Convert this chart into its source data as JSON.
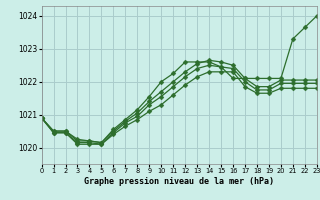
{
  "background_color": "#cceee8",
  "grid_color": "#aacccc",
  "line_color": "#2d6e2d",
  "title": "Graphe pression niveau de la mer (hPa)",
  "xlim": [
    0,
    23
  ],
  "ylim": [
    1019.5,
    1024.3
  ],
  "yticks": [
    1020,
    1021,
    1022,
    1023,
    1024
  ],
  "xticks": [
    0,
    1,
    2,
    3,
    4,
    5,
    6,
    7,
    8,
    9,
    10,
    11,
    12,
    13,
    14,
    15,
    16,
    17,
    18,
    19,
    20,
    21,
    22,
    23
  ],
  "series": [
    {
      "x": [
        0,
        1,
        2,
        3,
        4,
        5,
        6,
        7,
        8,
        9,
        10,
        11,
        12,
        13,
        14,
        15,
        16,
        17,
        18,
        19,
        20,
        21,
        22,
        23
      ],
      "y": [
        1020.9,
        1020.5,
        1020.5,
        1020.25,
        1020.2,
        1020.15,
        1020.55,
        1020.85,
        1021.15,
        1021.55,
        1022.0,
        1022.25,
        1022.6,
        1022.6,
        1022.6,
        1022.45,
        1022.1,
        1022.1,
        1022.1,
        1022.1,
        1022.1,
        1023.3,
        1023.65,
        1024.0
      ]
    },
    {
      "x": [
        0,
        1,
        2,
        3,
        4,
        5,
        6,
        7,
        8,
        9,
        10,
        11,
        12,
        13,
        14,
        15,
        16,
        17,
        18,
        19,
        20,
        21,
        22,
        23
      ],
      "y": [
        1020.9,
        1020.5,
        1020.5,
        1020.2,
        1020.2,
        1020.15,
        1020.5,
        1020.8,
        1021.05,
        1021.4,
        1021.7,
        1022.0,
        1022.3,
        1022.55,
        1022.65,
        1022.6,
        1022.5,
        1022.1,
        1021.85,
        1021.85,
        1022.05,
        1022.05,
        1022.05,
        1022.05
      ]
    },
    {
      "x": [
        0,
        1,
        2,
        3,
        4,
        5,
        6,
        7,
        8,
        9,
        10,
        11,
        12,
        13,
        14,
        15,
        16,
        17,
        18,
        19,
        20,
        21,
        22,
        23
      ],
      "y": [
        1020.9,
        1020.45,
        1020.45,
        1020.15,
        1020.15,
        1020.1,
        1020.45,
        1020.75,
        1020.95,
        1021.3,
        1021.55,
        1021.85,
        1022.15,
        1022.4,
        1022.5,
        1022.45,
        1022.4,
        1022.0,
        1021.75,
        1021.75,
        1021.95,
        1021.95,
        1021.95,
        1021.95
      ]
    },
    {
      "x": [
        0,
        1,
        2,
        3,
        4,
        5,
        6,
        7,
        8,
        9,
        10,
        11,
        12,
        13,
        14,
        15,
        16,
        17,
        18,
        19,
        20,
        21,
        22,
        23
      ],
      "y": [
        1020.9,
        1020.45,
        1020.45,
        1020.1,
        1020.1,
        1020.1,
        1020.4,
        1020.65,
        1020.85,
        1021.1,
        1021.3,
        1021.6,
        1021.9,
        1022.15,
        1022.3,
        1022.3,
        1022.3,
        1021.85,
        1021.65,
        1021.65,
        1021.8,
        1021.8,
        1021.8,
        1021.8
      ]
    }
  ]
}
